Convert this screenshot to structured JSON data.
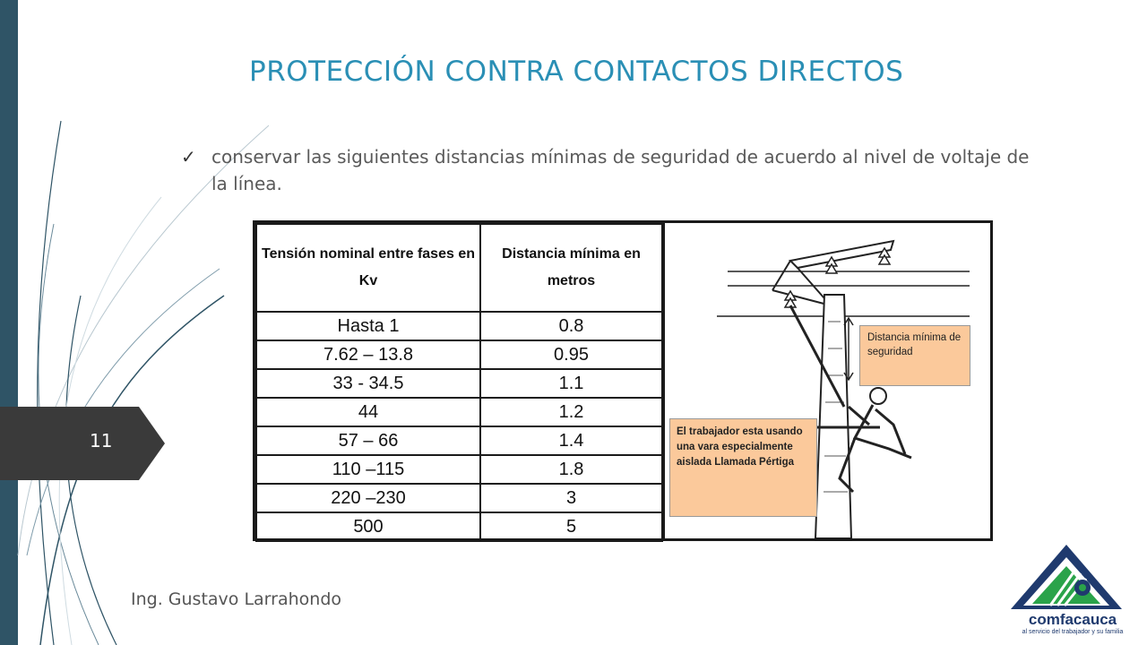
{
  "slide": {
    "title": "PROTECCIÓN CONTRA CONTACTOS DIRECTOS",
    "page_number": "11",
    "bullet": "conservar las siguientes distancias mínimas de seguridad de acuerdo al nivel de voltaje de la línea.",
    "author": "Ing. Gustavo Larrahondo"
  },
  "table": {
    "headers": [
      "Tensión nominal entre fases en Kv",
      "Distancia mínima en metros"
    ],
    "rows": [
      [
        "Hasta 1",
        "0.8"
      ],
      [
        "7.62 – 13.8",
        "0.95"
      ],
      [
        "33 - 34.5",
        "1.1"
      ],
      [
        "44",
        "1.2"
      ],
      [
        "57 – 66",
        "1.4"
      ],
      [
        "110 –115",
        "1.8"
      ],
      [
        "220 –230",
        "3"
      ],
      [
        "500",
        "5"
      ]
    ]
  },
  "illustration": {
    "note_top": "Distancia mínima de seguridad",
    "note_bottom": "El trabajador esta usando una vara especialmente aislada Llamada Pértiga"
  },
  "logo": {
    "name": "comfacauca",
    "tagline": "al servicio del trabajador y su familia"
  },
  "colors": {
    "title": "#2a8fb5",
    "sidebar": "#2f5466",
    "badge": "#3a3a3a",
    "note_fill": "#fbc99b",
    "logo_blue": "#1f3a6e",
    "logo_green": "#2aa34a"
  }
}
